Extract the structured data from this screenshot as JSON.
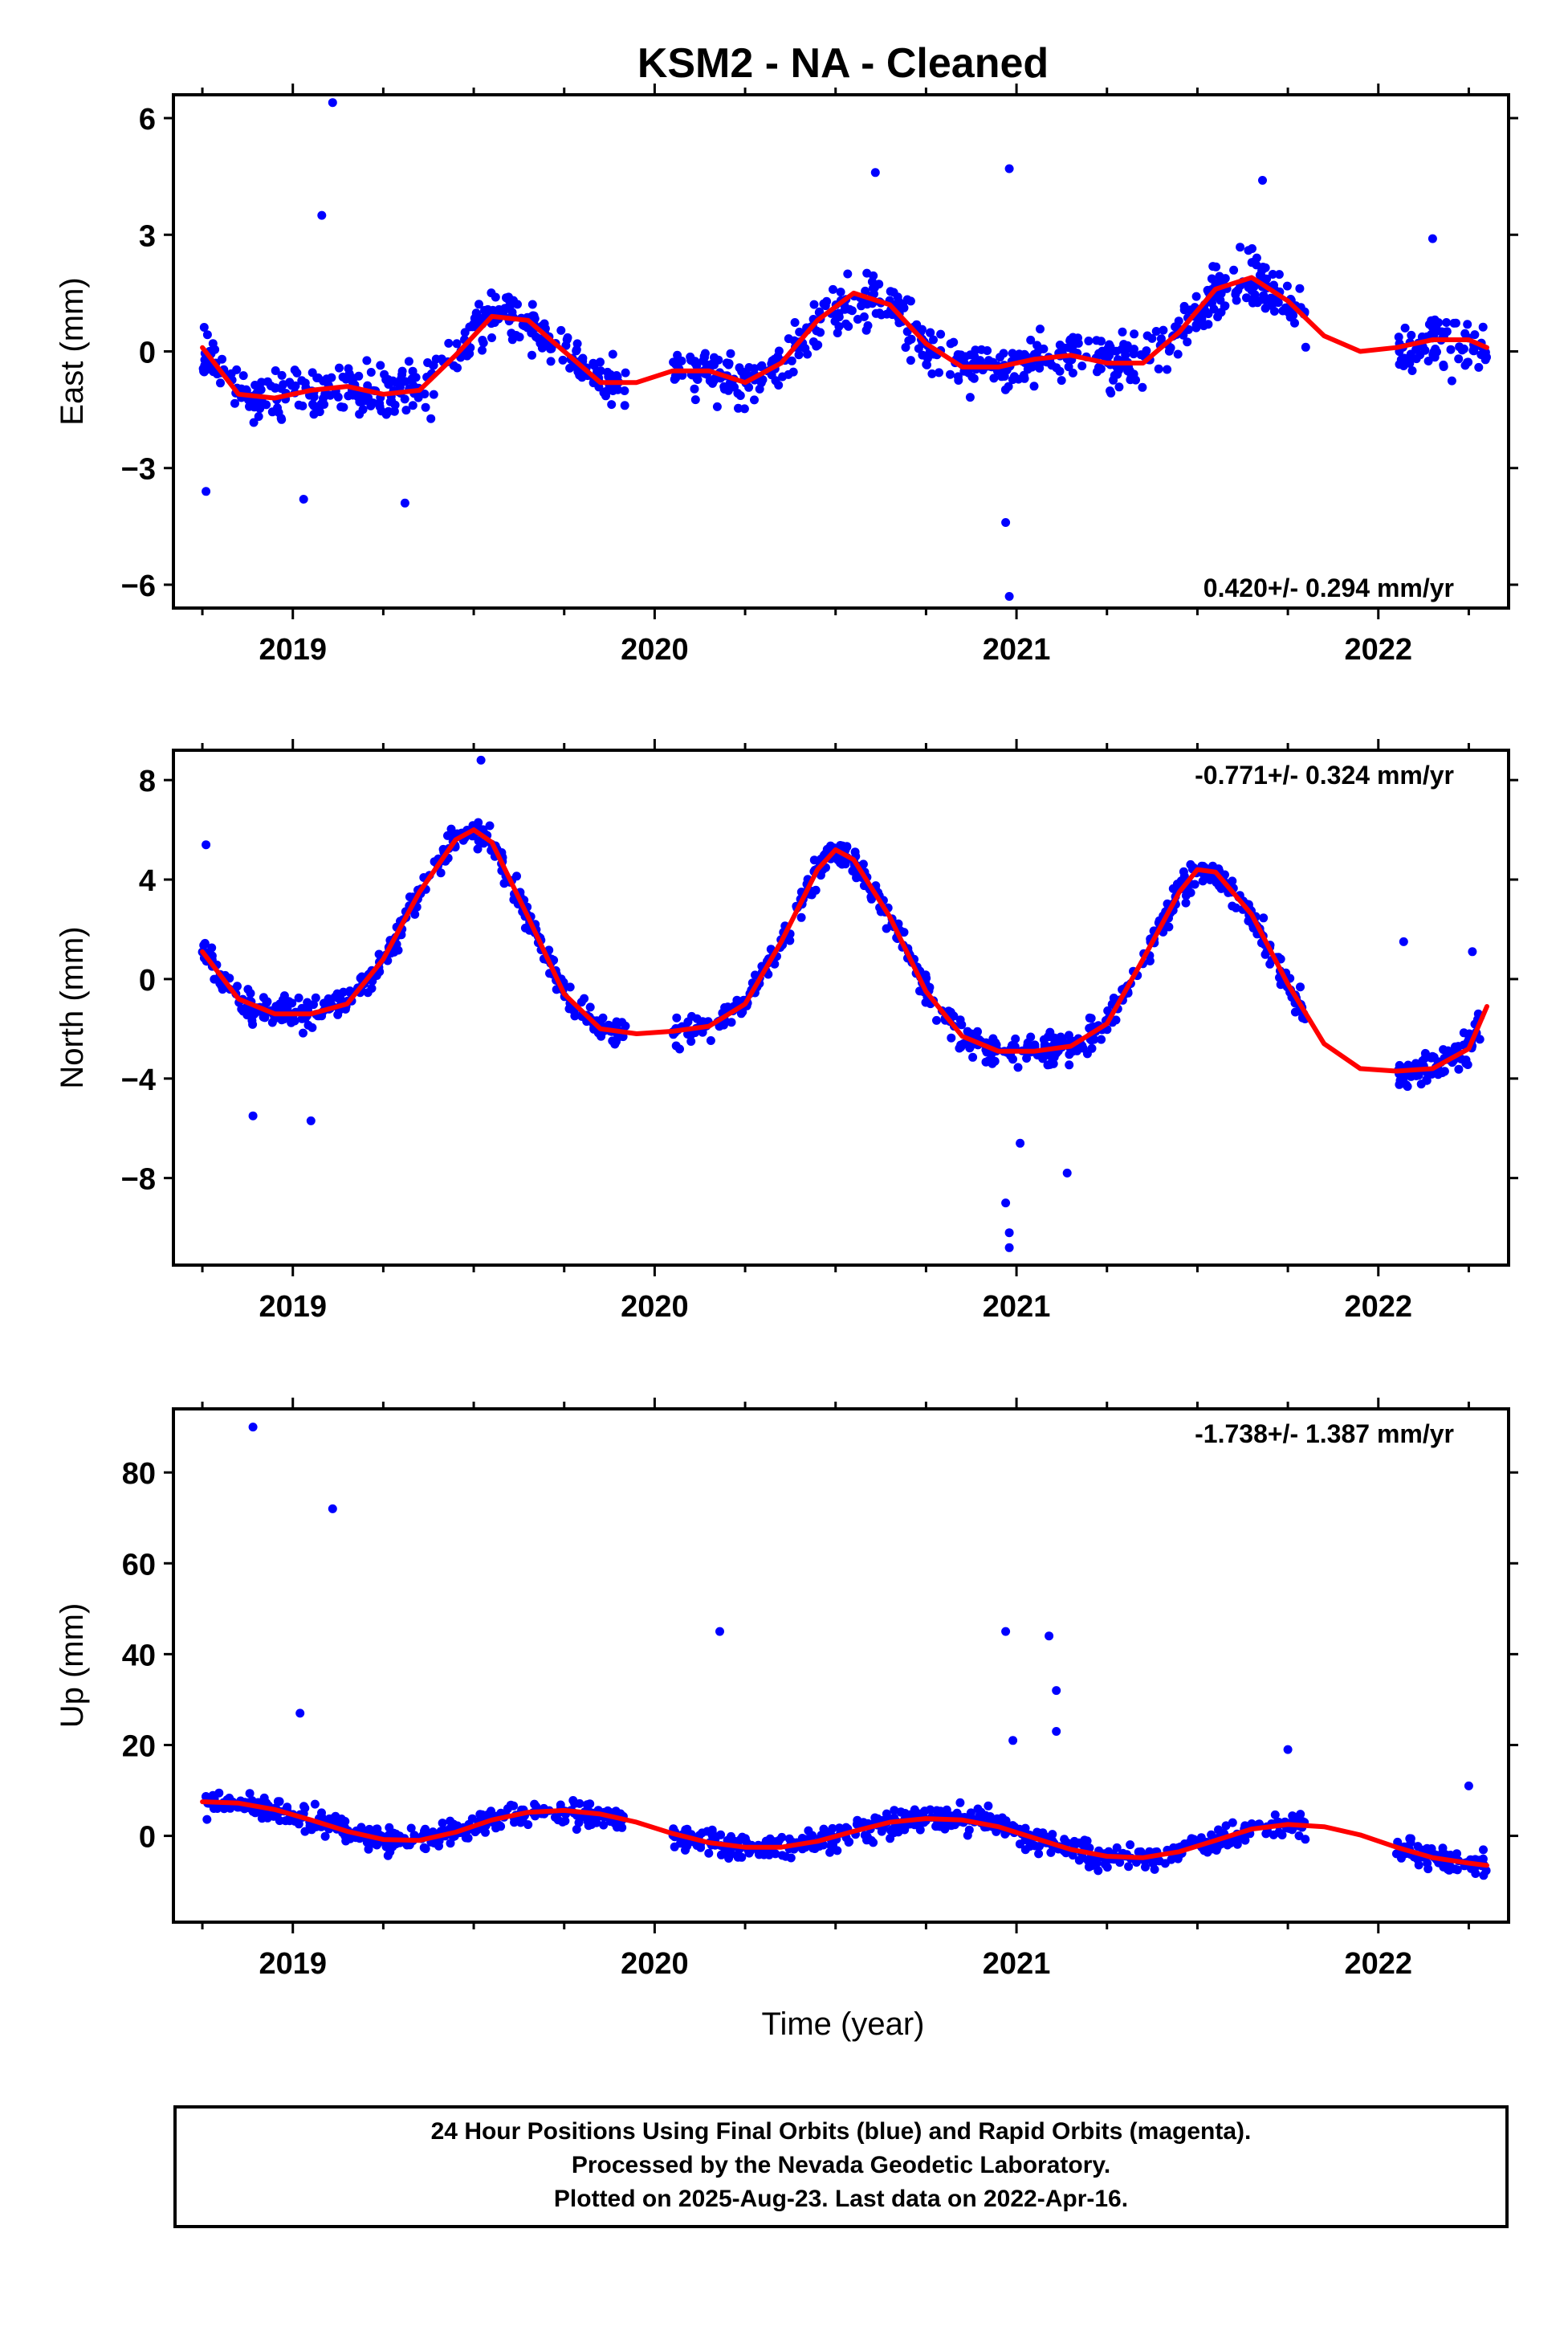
{
  "title": "KSM2  - NA - Cleaned",
  "colors": {
    "points": "#0000ff",
    "fit": "#ff0000",
    "frame": "#000000"
  },
  "x_axis": {
    "label": "Time (year)",
    "ticks": [
      2019,
      2020,
      2021,
      2022
    ],
    "range": [
      2018.67,
      2022.36
    ]
  },
  "chart_data": [
    {
      "type": "scatter",
      "ylabel": "East (mm)",
      "ylim": [
        -6.6,
        6.6
      ],
      "yticks": [
        6,
        3,
        0,
        -3,
        -6
      ],
      "ytick_labels": [
        "6",
        "3",
        "0",
        "−3",
        "−6"
      ],
      "xlim": [
        2018.67,
        2022.36
      ],
      "rate_label": "0.420+/- 0.294 mm/yr",
      "rate_position": "bottom-right",
      "fit_curve": {
        "x": [
          2018.75,
          2018.85,
          2018.95,
          2019.05,
          2019.15,
          2019.25,
          2019.35,
          2019.45,
          2019.55,
          2019.65,
          2019.75,
          2019.85,
          2019.95,
          2020.05,
          2020.15,
          2020.25,
          2020.35,
          2020.45,
          2020.55,
          2020.65,
          2020.75,
          2020.85,
          2020.95,
          2021.05,
          2021.15,
          2021.25,
          2021.35,
          2021.45,
          2021.55,
          2021.65,
          2021.75,
          2021.85,
          2021.95,
          2022.05,
          2022.15,
          2022.25,
          2022.3
        ],
        "y": [
          0.1,
          -1.1,
          -1.2,
          -1.0,
          -0.9,
          -1.1,
          -1.0,
          -0.1,
          0.9,
          0.8,
          0.0,
          -0.8,
          -0.8,
          -0.5,
          -0.5,
          -0.8,
          -0.3,
          0.8,
          1.5,
          1.2,
          0.2,
          -0.4,
          -0.4,
          -0.2,
          -0.1,
          -0.3,
          -0.3,
          0.5,
          1.6,
          1.9,
          1.3,
          0.4,
          0.0,
          0.1,
          0.3,
          0.3,
          0.1
        ]
      },
      "outliers": [
        {
          "x": 2019.11,
          "y": 6.4
        },
        {
          "x": 2019.08,
          "y": 3.5
        },
        {
          "x": 2018.76,
          "y": -3.6
        },
        {
          "x": 2019.03,
          "y": -3.8
        },
        {
          "x": 2019.31,
          "y": -3.9
        },
        {
          "x": 2020.61,
          "y": 4.6
        },
        {
          "x": 2020.98,
          "y": 4.7
        },
        {
          "x": 2020.98,
          "y": -6.3
        },
        {
          "x": 2020.97,
          "y": -4.4
        },
        {
          "x": 2021.68,
          "y": 4.4
        },
        {
          "x": 2022.15,
          "y": 2.9
        }
      ],
      "data_segments": [
        [
          2018.75,
          2019.92
        ],
        [
          2020.05,
          2021.8
        ],
        [
          2022.05,
          2022.3
        ]
      ],
      "noise": 0.85
    },
    {
      "type": "scatter",
      "ylabel": "North (mm)",
      "ylim": [
        -11.5,
        9.2
      ],
      "yticks": [
        8,
        4,
        0,
        -4,
        -8
      ],
      "ytick_labels": [
        "8",
        "4",
        "0",
        "−4",
        "−8"
      ],
      "xlim": [
        2018.67,
        2022.36
      ],
      "rate_label": "-0.771+/- 0.324 mm/yr",
      "rate_position": "top-right",
      "fit_curve": {
        "x": [
          2018.75,
          2018.85,
          2018.95,
          2019.05,
          2019.15,
          2019.25,
          2019.35,
          2019.45,
          2019.5,
          2019.55,
          2019.65,
          2019.75,
          2019.85,
          2019.95,
          2020.05,
          2020.15,
          2020.25,
          2020.35,
          2020.45,
          2020.5,
          2020.55,
          2020.65,
          2020.75,
          2020.85,
          2020.95,
          2021.05,
          2021.15,
          2021.25,
          2021.35,
          2021.45,
          2021.5,
          2021.55,
          2021.65,
          2021.75,
          2021.85,
          2021.95,
          2022.05,
          2022.15,
          2022.25,
          2022.3
        ],
        "y": [
          1.1,
          -0.8,
          -1.4,
          -1.4,
          -1.0,
          0.8,
          3.5,
          5.6,
          6.0,
          5.5,
          2.5,
          -0.6,
          -2.0,
          -2.2,
          -2.1,
          -1.9,
          -1.0,
          1.5,
          4.4,
          5.2,
          4.8,
          2.5,
          -0.5,
          -2.3,
          -2.9,
          -2.9,
          -2.7,
          -1.8,
          0.8,
          3.5,
          4.4,
          4.3,
          2.6,
          -0.2,
          -2.6,
          -3.6,
          -3.7,
          -3.6,
          -2.8,
          -1.1
        ]
      },
      "outliers": [
        {
          "x": 2019.52,
          "y": 8.8
        },
        {
          "x": 2018.76,
          "y": 5.4
        },
        {
          "x": 2018.89,
          "y": -5.5
        },
        {
          "x": 2019.05,
          "y": -5.7
        },
        {
          "x": 2020.97,
          "y": -9.0
        },
        {
          "x": 2020.98,
          "y": -10.8
        },
        {
          "x": 2020.98,
          "y": -10.2
        },
        {
          "x": 2021.01,
          "y": -6.6
        },
        {
          "x": 2021.14,
          "y": -7.8
        },
        {
          "x": 2022.07,
          "y": 1.5
        },
        {
          "x": 2022.26,
          "y": 1.1
        }
      ],
      "data_segments": [
        [
          2018.75,
          2019.92
        ],
        [
          2020.05,
          2021.8
        ],
        [
          2022.05,
          2022.3
        ]
      ],
      "noise": 0.75
    },
    {
      "type": "scatter",
      "ylabel": "Up (mm)",
      "ylim": [
        -19,
        94
      ],
      "yticks": [
        80,
        60,
        40,
        20,
        0
      ],
      "ytick_labels": [
        "80",
        "60",
        "40",
        "20",
        "0"
      ],
      "xlim": [
        2018.67,
        2022.36
      ],
      "rate_label": "-1.738+/- 1.387 mm/yr",
      "rate_position": "top-right",
      "fit_curve": {
        "x": [
          2018.75,
          2018.85,
          2018.95,
          2019.05,
          2019.15,
          2019.25,
          2019.35,
          2019.45,
          2019.55,
          2019.65,
          2019.75,
          2019.85,
          2019.95,
          2020.05,
          2020.15,
          2020.25,
          2020.35,
          2020.45,
          2020.55,
          2020.65,
          2020.75,
          2020.85,
          2020.95,
          2021.05,
          2021.15,
          2021.25,
          2021.35,
          2021.45,
          2021.55,
          2021.65,
          2021.75,
          2021.85,
          2021.95,
          2022.05,
          2022.15,
          2022.25,
          2022.3
        ],
        "y": [
          7.5,
          7.2,
          5.8,
          3.5,
          1.0,
          -0.8,
          -1.0,
          0.8,
          3.5,
          5.2,
          5.6,
          4.8,
          3.0,
          0.5,
          -1.5,
          -2.5,
          -2.5,
          -1.2,
          1.0,
          3.0,
          3.8,
          3.5,
          2.0,
          -0.5,
          -3.0,
          -4.5,
          -4.8,
          -3.5,
          -1.0,
          1.5,
          2.5,
          2.0,
          0.2,
          -2.5,
          -4.8,
          -6.0,
          -6.5
        ]
      },
      "outliers": [
        {
          "x": 2018.89,
          "y": 90
        },
        {
          "x": 2019.11,
          "y": 72
        },
        {
          "x": 2019.02,
          "y": 27
        },
        {
          "x": 2020.18,
          "y": 45
        },
        {
          "x": 2020.97,
          "y": 45
        },
        {
          "x": 2021.09,
          "y": 44
        },
        {
          "x": 2021.11,
          "y": 32
        },
        {
          "x": 2021.11,
          "y": 23
        },
        {
          "x": 2020.99,
          "y": 21
        },
        {
          "x": 2021.75,
          "y": 19
        },
        {
          "x": 2022.25,
          "y": 11
        }
      ],
      "data_segments": [
        [
          2018.75,
          2019.92
        ],
        [
          2020.05,
          2021.8
        ],
        [
          2022.05,
          2022.3
        ]
      ],
      "noise": 3.4
    }
  ],
  "footer": {
    "line1": "24 Hour Positions Using Final Orbits (blue) and Rapid Orbits (magenta).",
    "line2": "Processed by the Nevada Geodetic Laboratory.",
    "line3": "Plotted on 2025-Aug-23. Last data on 2022-Apr-16."
  }
}
